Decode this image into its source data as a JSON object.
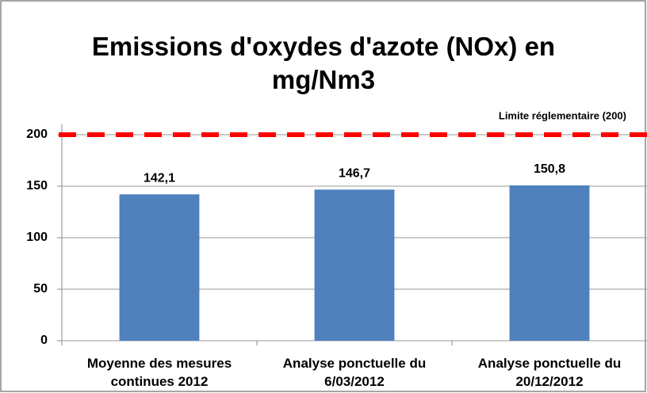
{
  "chart_data": {
    "type": "bar",
    "title": "Emissions d'oxydes d'azote (NOx) en mg/Nm3",
    "categories": [
      "Moyenne des mesures continues 2012",
      "Analyse ponctuelle du 6/03/2012",
      "Analyse ponctuelle du 20/12/2012"
    ],
    "values": [
      142.1,
      146.7,
      150.8
    ],
    "value_labels": [
      "142,1",
      "146,7",
      "150,8"
    ],
    "color": "#4f81bd",
    "ylim": [
      0,
      210
    ],
    "yticks": [
      0,
      50,
      100,
      150,
      200
    ],
    "grid": true,
    "reference_line": {
      "value": 200,
      "label": "Limite réglementaire (200)",
      "color": "#ff0000"
    }
  }
}
